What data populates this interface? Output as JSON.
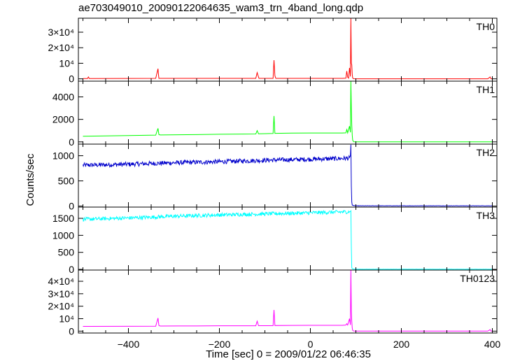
{
  "chart_data": {
    "type": "line",
    "title": "ae703049010_20090122064635_wam3_trn_4band_long.qdp",
    "xlabel": "Time [sec] 0 = 2009/01/22 06:46:35",
    "ylabel": "Counts/sec",
    "xlim": [
      -510,
      410
    ],
    "x_ticks": [
      -400,
      -200,
      0,
      200,
      400
    ],
    "x_tick_labels": [
      "−400",
      "−200",
      "0",
      "200",
      "400"
    ],
    "grid": false,
    "panels": [
      {
        "name": "TH0",
        "color": "#ff0000",
        "ylim": [
          -1500,
          39000
        ],
        "y_ticks": [
          0,
          10000,
          20000,
          30000
        ],
        "y_tick_labels": [
          "0",
          "10⁴",
          "2×10⁴",
          "3×10⁴"
        ],
        "series": {
          "x": [
            -500,
            -490,
            -488,
            -486,
            -400,
            -340,
            -335,
            -334,
            -333,
            -330,
            -250,
            -200,
            -120,
            -117,
            -115,
            -113,
            -90,
            -82,
            -80,
            -78,
            -76,
            -40,
            0,
            70,
            78,
            80,
            82,
            84,
            86,
            88,
            89,
            90,
            91,
            92,
            93,
            95,
            100,
            200,
            300,
            390,
            395,
            397,
            400
          ],
          "y": [
            200,
            200,
            1200,
            200,
            250,
            300,
            6500,
            3000,
            300,
            300,
            300,
            300,
            300,
            4000,
            2000,
            300,
            300,
            300,
            12000,
            2000,
            300,
            300,
            300,
            300,
            400,
            5000,
            1000,
            400,
            7000,
            1500,
            39000,
            10000,
            9000,
            3000,
            500,
            50,
            0,
            0,
            0,
            0,
            1200,
            0,
            0
          ]
        }
      },
      {
        "name": "TH1",
        "color": "#00ff00",
        "ylim": [
          -200,
          5400
        ],
        "y_ticks": [
          0,
          2000,
          4000
        ],
        "y_tick_labels": [
          "0",
          "2000",
          "4000"
        ],
        "series": {
          "x": [
            -500,
            -400,
            -340,
            -335,
            -333,
            -330,
            -250,
            -200,
            -120,
            -117,
            -114,
            -90,
            -82,
            -80,
            -78,
            -40,
            0,
            70,
            78,
            80,
            82,
            86,
            88,
            89,
            90,
            91,
            92,
            93,
            95,
            100,
            200,
            300,
            390,
            400
          ],
          "y": [
            500,
            560,
            600,
            1200,
            650,
            620,
            650,
            680,
            700,
            1000,
            720,
            740,
            750,
            2300,
            760,
            780,
            790,
            790,
            800,
            1100,
            800,
            1400,
            850,
            5400,
            3000,
            1500,
            600,
            150,
            10,
            0,
            0,
            0,
            0,
            0
          ]
        }
      },
      {
        "name": "TH2",
        "color": "#0000cc",
        "ylim": [
          -20,
          1230
        ],
        "y_ticks": [
          0,
          500,
          1000
        ],
        "y_tick_labels": [
          "0",
          "500",
          "1000"
        ],
        "series": {
          "x": [
            -500,
            -400,
            -300,
            -200,
            -100,
            0,
            50,
            85,
            88,
            89,
            90,
            91,
            92,
            95,
            100,
            200,
            300,
            400
          ],
          "y": [
            810,
            830,
            860,
            880,
            910,
            930,
            940,
            950,
            1000,
            1220,
            400,
            80,
            20,
            10,
            5,
            5,
            5,
            5
          ]
        },
        "noise": 45
      },
      {
        "name": "TH3",
        "color": "#00ffff",
        "ylim": [
          -20,
          1830
        ],
        "y_ticks": [
          0,
          500,
          1000,
          1500
        ],
        "y_tick_labels": [
          "0",
          "500",
          "1000",
          "1500"
        ],
        "series": {
          "x": [
            -500,
            -400,
            -300,
            -200,
            -100,
            0,
            50,
            85,
            88,
            89,
            90,
            91,
            92,
            95,
            100,
            200,
            300,
            400
          ],
          "y": [
            1470,
            1510,
            1560,
            1600,
            1630,
            1660,
            1680,
            1690,
            1700,
            1720,
            650,
            50,
            20,
            10,
            5,
            5,
            5,
            5
          ]
        },
        "noise": 55
      },
      {
        "name": "TH0123",
        "color": "#ff00ff",
        "ylim": [
          -1500,
          49000
        ],
        "y_ticks": [
          0,
          10000,
          20000,
          30000,
          40000
        ],
        "y_tick_labels": [
          "0",
          "10⁴",
          "2×10⁴",
          "3×10⁴",
          "4×10⁴"
        ],
        "series": {
          "x": [
            -500,
            -400,
            -340,
            -335,
            -333,
            -330,
            -250,
            -200,
            -120,
            -117,
            -114,
            -90,
            -82,
            -80,
            -78,
            -40,
            0,
            70,
            78,
            80,
            82,
            86,
            88,
            89,
            90,
            91,
            92,
            93,
            95,
            100,
            200,
            300,
            390,
            395,
            397,
            400
          ],
          "y": [
            3800,
            3900,
            4000,
            10500,
            4500,
            4100,
            4200,
            4300,
            4300,
            8000,
            4400,
            4400,
            4400,
            17000,
            4500,
            4600,
            4700,
            4700,
            4900,
            6000,
            4900,
            10000,
            5000,
            49000,
            16000,
            8000,
            2500,
            600,
            100,
            50,
            50,
            50,
            50,
            1200,
            50,
            50
          ]
        }
      }
    ]
  }
}
